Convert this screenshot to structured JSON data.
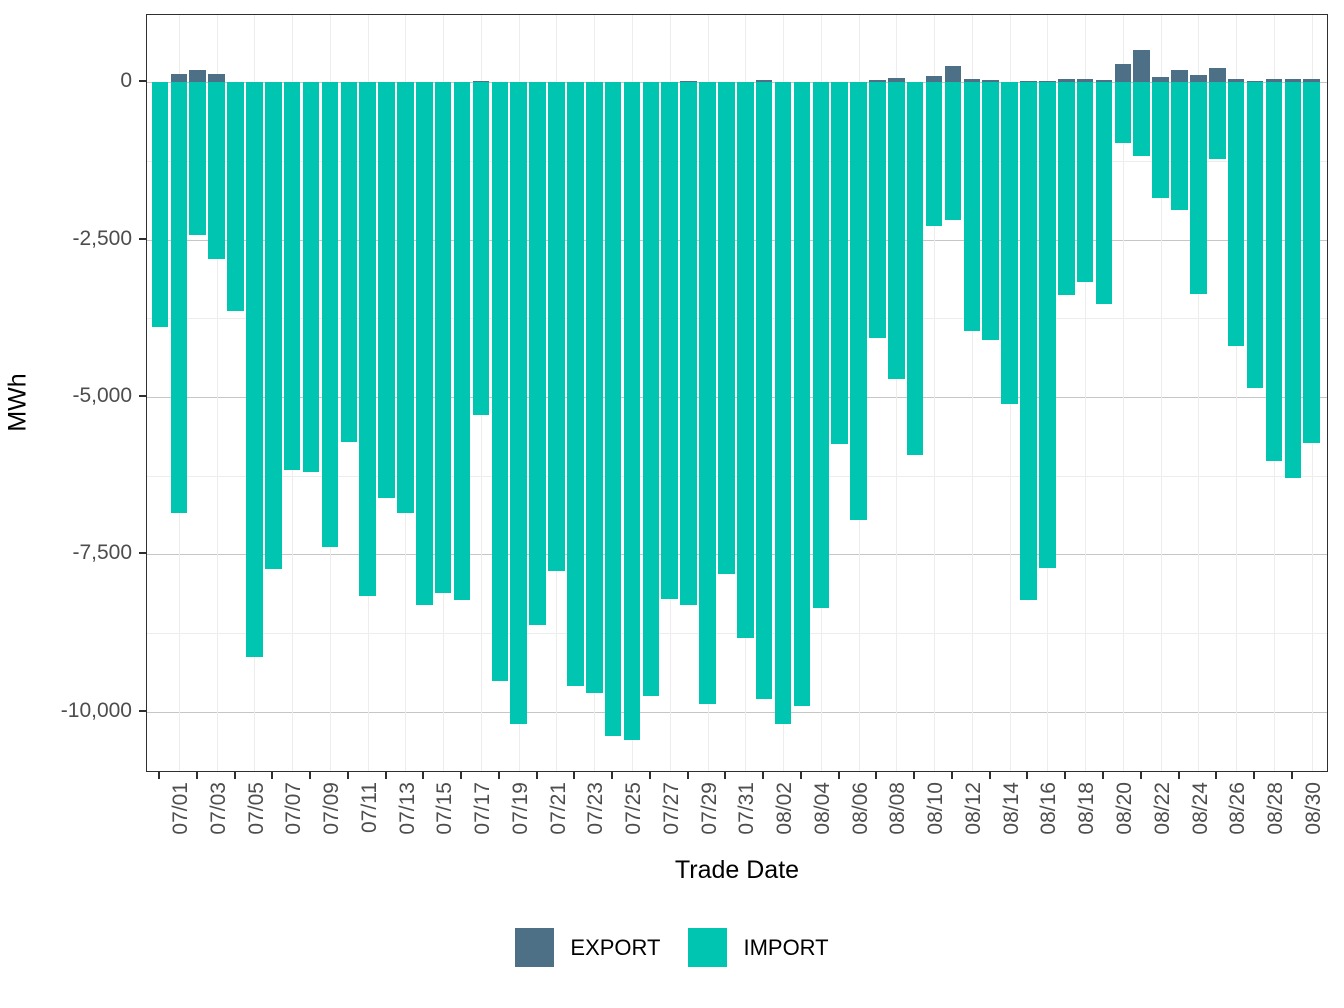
{
  "figure": {
    "x_title": "Trade Date",
    "y_title": "MWh"
  },
  "chart_data": {
    "type": "bar",
    "stacked": true,
    "title": "",
    "xlabel": "Trade Date",
    "ylabel": "MWh",
    "legend_position": "bottom",
    "grid": true,
    "categories": [
      "07/01",
      "07/02",
      "07/03",
      "07/04",
      "07/05",
      "07/06",
      "07/07",
      "07/08",
      "07/09",
      "07/10",
      "07/11",
      "07/12",
      "07/13",
      "07/14",
      "07/15",
      "07/16",
      "07/17",
      "07/18",
      "07/19",
      "07/20",
      "07/21",
      "07/22",
      "07/23",
      "07/24",
      "07/25",
      "07/26",
      "07/27",
      "07/28",
      "07/29",
      "07/30",
      "07/31",
      "08/01",
      "08/02",
      "08/03",
      "08/04",
      "08/05",
      "08/06",
      "08/07",
      "08/08",
      "08/09",
      "08/10",
      "08/11",
      "08/12",
      "08/13",
      "08/14",
      "08/15",
      "08/16",
      "08/17",
      "08/18",
      "08/19",
      "08/20",
      "08/21",
      "08/22",
      "08/23",
      "08/24",
      "08/25",
      "08/26",
      "08/27",
      "08/28",
      "08/29",
      "08/30",
      "08/31"
    ],
    "series": [
      {
        "name": "EXPORT",
        "color": "#4E7087",
        "values": [
          0,
          140,
          190,
          140,
          0,
          0,
          0,
          0,
          0,
          0,
          0,
          0,
          0,
          0,
          0,
          0,
          0,
          30,
          0,
          0,
          0,
          0,
          0,
          0,
          0,
          0,
          0,
          0,
          30,
          0,
          0,
          0,
          35,
          0,
          0,
          0,
          0,
          0,
          40,
          75,
          0,
          100,
          260,
          60,
          35,
          0,
          30,
          30,
          50,
          60,
          40,
          285,
          510,
          85,
          200,
          125,
          235,
          60,
          30,
          50,
          50,
          50
        ]
      },
      {
        "name": "IMPORT",
        "color": "#00C5B1",
        "values": [
          -3880,
          -6850,
          -2420,
          -2800,
          -3640,
          -9130,
          -7740,
          -6160,
          -6200,
          -7380,
          -5710,
          -8160,
          -6610,
          -6840,
          -8300,
          -8110,
          -8230,
          -5290,
          -9510,
          -10200,
          -8620,
          -7770,
          -9590,
          -9700,
          -10390,
          -10450,
          -9750,
          -8210,
          -8300,
          -9880,
          -7810,
          -8830,
          -9800,
          -10200,
          -9910,
          -8350,
          -5750,
          -6960,
          -4060,
          -4710,
          -5920,
          -2280,
          -2190,
          -3950,
          -4090,
          -5110,
          -8230,
          -7720,
          -3380,
          -3180,
          -3530,
          -960,
          -1170,
          -1830,
          -2030,
          -3360,
          -1210,
          -4190,
          -4850,
          -6020,
          -6280,
          -5730
        ]
      }
    ],
    "y_axis": {
      "ticks": [
        0,
        -2500,
        -5000,
        -7500,
        -10000
      ],
      "tick_labels": [
        "0",
        "-2,500",
        "-5,000",
        "-7,500",
        "-10,000"
      ],
      "minor_ticks": [
        -1250,
        -3750,
        -6250,
        -8750
      ],
      "ylim": [
        -11000,
        1070
      ]
    },
    "x_axis": {
      "labels_every": 2,
      "labels_shown": [
        "07/01",
        "07/03",
        "07/05",
        "07/07",
        "07/09",
        "07/11",
        "07/13",
        "07/15",
        "07/17",
        "07/19",
        "07/21",
        "07/23",
        "07/25",
        "07/27",
        "07/29",
        "07/31",
        "08/02",
        "08/04",
        "08/06",
        "08/08",
        "08/10",
        "08/12",
        "08/14",
        "08/16",
        "08/18",
        "08/20",
        "08/22",
        "08/24",
        "08/26",
        "08/28",
        "08/30"
      ]
    },
    "legend": [
      {
        "label": "EXPORT",
        "color": "#4E7087"
      },
      {
        "label": "IMPORT",
        "color": "#00C5B1"
      }
    ]
  }
}
